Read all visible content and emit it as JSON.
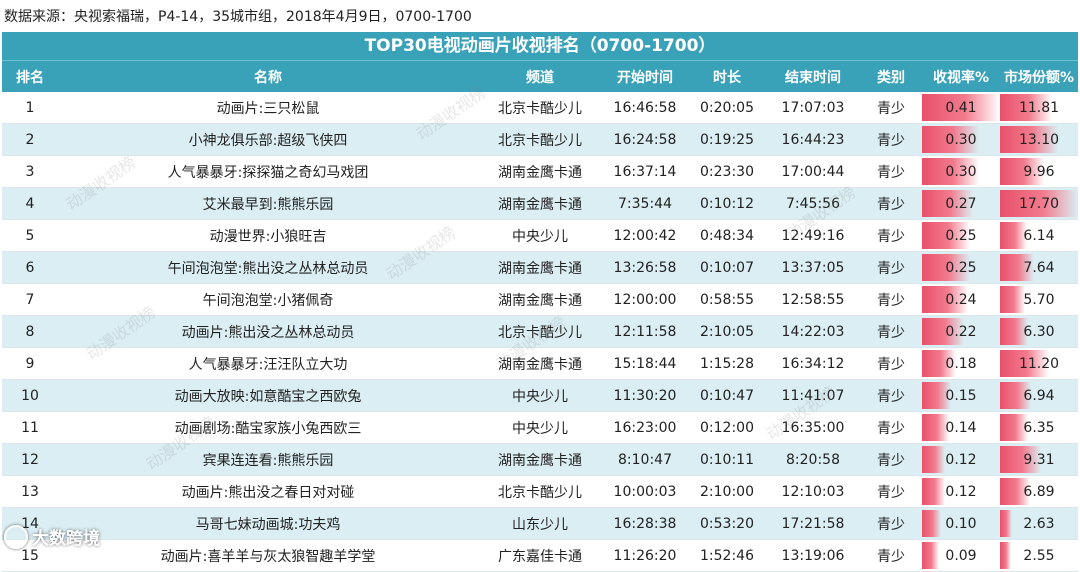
{
  "source_text": "数据来源：央视索福瑞，P4-14，35城市组，2018年4月9日，0700-1700",
  "table": {
    "title": "TOP30电视动画片收视排名（0700-1700）",
    "headers": {
      "rank": "排名",
      "name": "名称",
      "channel": "频道",
      "start": "开始时间",
      "duration": "时长",
      "end": "结束时间",
      "type": "类别",
      "rating": "收视率%",
      "share": "市场份额%"
    },
    "rows": [
      {
        "rank": "1",
        "name": "动画片:三只松鼠",
        "channel": "北京卡酷少儿",
        "start": "16:46:58",
        "duration": "0:20:05",
        "end": "17:07:03",
        "type": "青少",
        "rating": "0.41",
        "share": "11.81"
      },
      {
        "rank": "2",
        "name": "小神龙俱乐部:超级飞侠四",
        "channel": "北京卡酷少儿",
        "start": "16:24:58",
        "duration": "0:19:25",
        "end": "16:44:23",
        "type": "青少",
        "rating": "0.30",
        "share": "13.10"
      },
      {
        "rank": "3",
        "name": "人气暴暴牙:探探猫之奇幻马戏团",
        "channel": "湖南金鹰卡通",
        "start": "16:37:14",
        "duration": "0:23:30",
        "end": "17:00:44",
        "type": "青少",
        "rating": "0.30",
        "share": "9.96"
      },
      {
        "rank": "4",
        "name": "艾米最早到:熊熊乐园",
        "channel": "湖南金鹰卡通",
        "start": "7:35:44",
        "duration": "0:10:12",
        "end": "7:45:56",
        "type": "青少",
        "rating": "0.27",
        "share": "17.70"
      },
      {
        "rank": "5",
        "name": "动漫世界:小狼旺吉",
        "channel": "中央少儿",
        "start": "12:00:42",
        "duration": "0:48:34",
        "end": "12:49:16",
        "type": "青少",
        "rating": "0.25",
        "share": "6.14"
      },
      {
        "rank": "6",
        "name": "午间泡泡堂:熊出没之丛林总动员",
        "channel": "湖南金鹰卡通",
        "start": "13:26:58",
        "duration": "0:10:07",
        "end": "13:37:05",
        "type": "青少",
        "rating": "0.25",
        "share": "7.64"
      },
      {
        "rank": "7",
        "name": "午间泡泡堂:小猪佩奇",
        "channel": "湖南金鹰卡通",
        "start": "12:00:00",
        "duration": "0:58:55",
        "end": "12:58:55",
        "type": "青少",
        "rating": "0.24",
        "share": "5.70"
      },
      {
        "rank": "8",
        "name": "动画片:熊出没之丛林总动员",
        "channel": "北京卡酷少儿",
        "start": "12:11:58",
        "duration": "2:10:05",
        "end": "14:22:03",
        "type": "青少",
        "rating": "0.22",
        "share": "6.30"
      },
      {
        "rank": "9",
        "name": "人气暴暴牙:汪汪队立大功",
        "channel": "湖南金鹰卡通",
        "start": "15:18:44",
        "duration": "1:15:28",
        "end": "16:34:12",
        "type": "青少",
        "rating": "0.18",
        "share": "11.20"
      },
      {
        "rank": "10",
        "name": "动画大放映:如意酷宝之西欧兔",
        "channel": "中央少儿",
        "start": "11:30:20",
        "duration": "0:10:47",
        "end": "11:41:07",
        "type": "青少",
        "rating": "0.15",
        "share": "6.94"
      },
      {
        "rank": "11",
        "name": "动画剧场:酷宝家族小兔西欧三",
        "channel": "中央少儿",
        "start": "16:23:00",
        "duration": "0:12:00",
        "end": "16:35:00",
        "type": "青少",
        "rating": "0.14",
        "share": "6.35"
      },
      {
        "rank": "12",
        "name": "宾果连连看:熊熊乐园",
        "channel": "湖南金鹰卡通",
        "start": "8:10:47",
        "duration": "0:10:11",
        "end": "8:20:58",
        "type": "青少",
        "rating": "0.12",
        "share": "9.31"
      },
      {
        "rank": "13",
        "name": "动画片:熊出没之春日对对碰",
        "channel": "北京卡酷少儿",
        "start": "10:00:03",
        "duration": "2:10:00",
        "end": "12:10:03",
        "type": "青少",
        "rating": "0.12",
        "share": "6.89"
      },
      {
        "rank": "14",
        "name": "马哥七妹动画城:功夫鸡",
        "channel": "山东少儿",
        "start": "16:28:38",
        "duration": "0:53:20",
        "end": "17:21:58",
        "type": "青少",
        "rating": "0.10",
        "share": "2.63"
      },
      {
        "rank": "15",
        "name": "动画片:喜羊羊与灰太狼智趣羊学堂",
        "channel": "广东嘉佳卡通",
        "start": "11:26:20",
        "duration": "1:52:46",
        "end": "13:19:06",
        "type": "青少",
        "rating": "0.09",
        "share": "2.55"
      }
    ],
    "rating_max": 0.41,
    "share_max": 17.7,
    "colors": {
      "header_bg": "#3aa2b8",
      "alt_row_bg": "#dbeef3",
      "bar": "#e8506a"
    }
  },
  "watermark_text": "动漫收视榜",
  "logo_text": "大数跨境"
}
